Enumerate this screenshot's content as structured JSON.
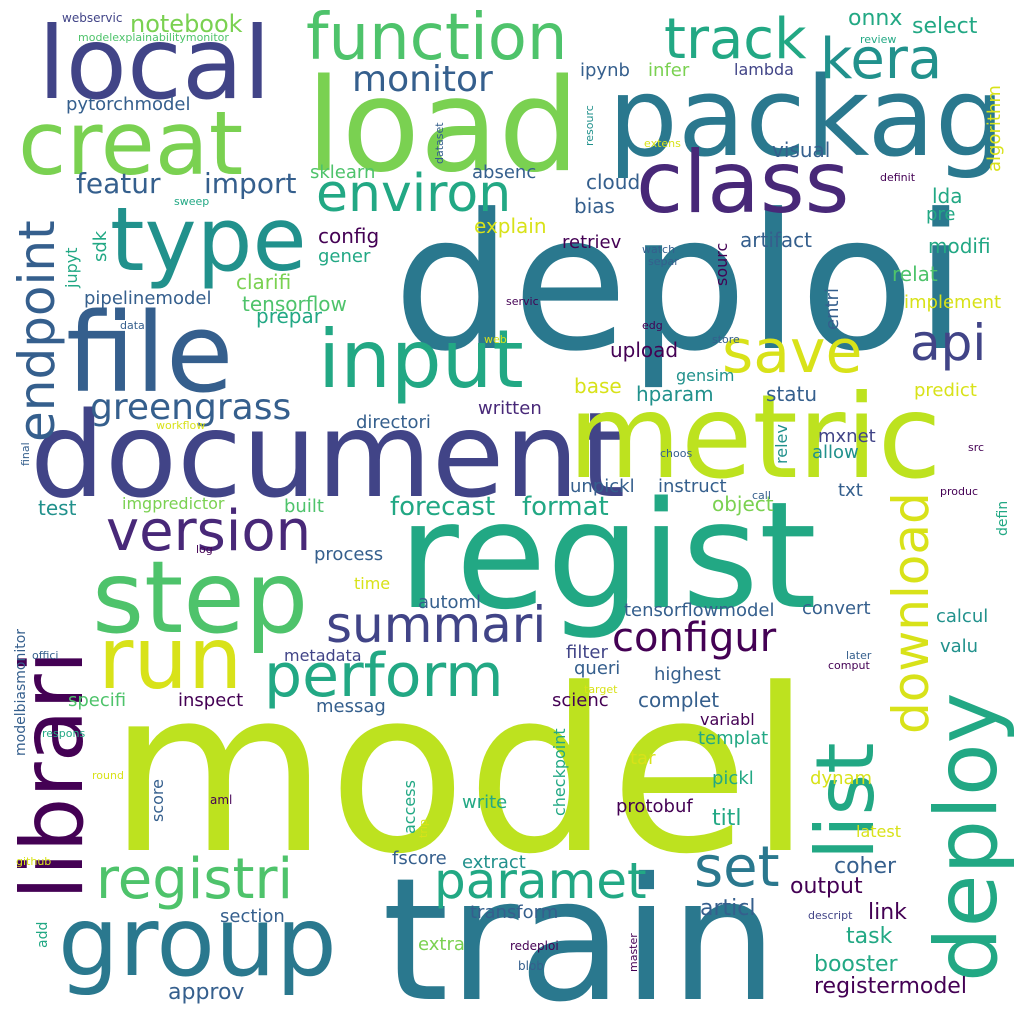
{
  "palette": {
    "lime": "#bde21f",
    "yellow": "#d8e219",
    "green": "#4ec36b",
    "light_green": "#7ad151",
    "teal": "#22a884",
    "cyan": "#21918c",
    "blue": "#2a788e",
    "slate": "#355f8d",
    "indigo": "#414487",
    "purple": "#482878",
    "dark": "#440154"
  },
  "words": [
    {
      "text": "model",
      "color": "lime"
    },
    {
      "text": "deploi",
      "color": "blue"
    },
    {
      "text": "train",
      "color": "blue"
    },
    {
      "text": "regist",
      "color": "teal"
    },
    {
      "text": "document",
      "color": "indigo"
    },
    {
      "text": "metric",
      "color": "lime"
    },
    {
      "text": "load",
      "color": "light_green"
    },
    {
      "text": "packag",
      "color": "blue"
    },
    {
      "text": "local",
      "color": "indigo"
    },
    {
      "text": "file",
      "color": "slate"
    },
    {
      "text": "group",
      "color": "blue"
    },
    {
      "text": "step",
      "color": "green"
    },
    {
      "text": "creat",
      "color": "light_green"
    },
    {
      "text": "class",
      "color": "purple"
    },
    {
      "text": "type",
      "color": "cyan"
    },
    {
      "text": "input",
      "color": "teal"
    },
    {
      "text": "run",
      "color": "yellow"
    },
    {
      "text": "deploy",
      "color": "teal"
    },
    {
      "text": "librari",
      "color": "dark"
    },
    {
      "text": "list",
      "color": "teal"
    },
    {
      "text": "function",
      "color": "green"
    },
    {
      "text": "perform",
      "color": "teal"
    },
    {
      "text": "registri",
      "color": "green"
    },
    {
      "text": "version",
      "color": "purple"
    },
    {
      "text": "summari",
      "color": "indigo"
    },
    {
      "text": "endpoint",
      "color": "slate"
    },
    {
      "text": "track",
      "color": "teal"
    },
    {
      "text": "environ",
      "color": "teal"
    },
    {
      "text": "paramet",
      "color": "teal"
    },
    {
      "text": "save",
      "color": "yellow"
    },
    {
      "text": "api",
      "color": "indigo"
    },
    {
      "text": "download",
      "color": "yellow"
    },
    {
      "text": "kera",
      "color": "cyan"
    },
    {
      "text": "set",
      "color": "blue"
    },
    {
      "text": "configur",
      "color": "dark"
    },
    {
      "text": "greengrass",
      "color": "slate"
    },
    {
      "text": "monitor",
      "color": "slate"
    },
    {
      "text": "featur",
      "color": "slate"
    },
    {
      "text": "import",
      "color": "slate"
    },
    {
      "text": "forecast",
      "color": "teal"
    },
    {
      "text": "format",
      "color": "teal"
    },
    {
      "text": "notebook",
      "color": "light_green"
    },
    {
      "text": "onnx",
      "color": "teal"
    },
    {
      "text": "select",
      "color": "teal"
    },
    {
      "text": "ipynb",
      "color": "slate"
    },
    {
      "text": "infer",
      "color": "light_green"
    },
    {
      "text": "lambda",
      "color": "indigo"
    },
    {
      "text": "pytorchmodel",
      "color": "slate"
    },
    {
      "text": "webservic",
      "color": "indigo"
    },
    {
      "text": "modelexplainabilitymonitor",
      "color": "green"
    },
    {
      "text": "visual",
      "color": "slate"
    },
    {
      "text": "sklearn",
      "color": "green"
    },
    {
      "text": "absenc",
      "color": "slate"
    },
    {
      "text": "cloud",
      "color": "slate"
    },
    {
      "text": "bias",
      "color": "slate"
    },
    {
      "text": "explain",
      "color": "yellow"
    },
    {
      "text": "config",
      "color": "dark"
    },
    {
      "text": "retriev",
      "color": "dark"
    },
    {
      "text": "artifact",
      "color": "slate"
    },
    {
      "text": "modifi",
      "color": "teal"
    },
    {
      "text": "lda",
      "color": "teal"
    },
    {
      "text": "pre",
      "color": "teal"
    },
    {
      "text": "gener",
      "color": "teal"
    },
    {
      "text": "clarifi",
      "color": "light_green"
    },
    {
      "text": "tensorflow",
      "color": "green"
    },
    {
      "text": "relat",
      "color": "green"
    },
    {
      "text": "pipelinemodel",
      "color": "slate"
    },
    {
      "text": "prepar",
      "color": "teal"
    },
    {
      "text": "implement",
      "color": "yellow"
    },
    {
      "text": "upload",
      "color": "dark"
    },
    {
      "text": "gensim",
      "color": "cyan"
    },
    {
      "text": "base",
      "color": "yellow"
    },
    {
      "text": "hparam",
      "color": "cyan"
    },
    {
      "text": "statu",
      "color": "slate"
    },
    {
      "text": "predict",
      "color": "yellow"
    },
    {
      "text": "written",
      "color": "purple"
    },
    {
      "text": "directori",
      "color": "slate"
    },
    {
      "text": "mxnet",
      "color": "indigo"
    },
    {
      "text": "allow",
      "color": "cyan"
    },
    {
      "text": "unpickl",
      "color": "slate"
    },
    {
      "text": "instruct",
      "color": "slate"
    },
    {
      "text": "txt",
      "color": "slate"
    },
    {
      "text": "object",
      "color": "light_green"
    },
    {
      "text": "imgpredictor",
      "color": "light_green"
    },
    {
      "text": "built",
      "color": "green"
    },
    {
      "text": "test",
      "color": "cyan"
    },
    {
      "text": "process",
      "color": "slate"
    },
    {
      "text": "time",
      "color": "yellow"
    },
    {
      "text": "automl",
      "color": "slate"
    },
    {
      "text": "tensorflowmodel",
      "color": "slate"
    },
    {
      "text": "convert",
      "color": "slate"
    },
    {
      "text": "calcul",
      "color": "cyan"
    },
    {
      "text": "valu",
      "color": "cyan"
    },
    {
      "text": "metadata",
      "color": "indigo"
    },
    {
      "text": "filter",
      "color": "indigo"
    },
    {
      "text": "queri",
      "color": "slate"
    },
    {
      "text": "highest",
      "color": "slate"
    },
    {
      "text": "complet",
      "color": "slate"
    },
    {
      "text": "specifi",
      "color": "green"
    },
    {
      "text": "inspect",
      "color": "dark"
    },
    {
      "text": "messag",
      "color": "slate"
    },
    {
      "text": "scienc",
      "color": "dark"
    },
    {
      "text": "variabl",
      "color": "dark"
    },
    {
      "text": "templat",
      "color": "teal"
    },
    {
      "text": "tar",
      "color": "yellow"
    },
    {
      "text": "pickl",
      "color": "teal"
    },
    {
      "text": "dynam",
      "color": "yellow"
    },
    {
      "text": "write",
      "color": "teal"
    },
    {
      "text": "protobuf",
      "color": "dark"
    },
    {
      "text": "titl",
      "color": "teal"
    },
    {
      "text": "latest",
      "color": "yellow"
    },
    {
      "text": "coher",
      "color": "slate"
    },
    {
      "text": "output",
      "color": "dark"
    },
    {
      "text": "link",
      "color": "dark"
    },
    {
      "text": "articl",
      "color": "slate"
    },
    {
      "text": "fscore",
      "color": "slate"
    },
    {
      "text": "extract",
      "color": "cyan"
    },
    {
      "text": "section",
      "color": "slate"
    },
    {
      "text": "transform",
      "color": "slate"
    },
    {
      "text": "task",
      "color": "teal"
    },
    {
      "text": "booster",
      "color": "teal"
    },
    {
      "text": "registermodel",
      "color": "dark"
    },
    {
      "text": "approv",
      "color": "slate"
    },
    {
      "text": "extra",
      "color": "light_green"
    },
    {
      "text": "add",
      "color": "teal"
    },
    {
      "text": "blob",
      "color": "slate"
    },
    {
      "text": "redeploi",
      "color": "dark"
    },
    {
      "text": "master",
      "color": "dark"
    },
    {
      "text": "descript",
      "color": "indigo"
    },
    {
      "text": "github",
      "color": "yellow"
    },
    {
      "text": "round",
      "color": "yellow"
    },
    {
      "text": "aml",
      "color": "dark"
    },
    {
      "text": "respons",
      "color": "teal"
    },
    {
      "text": "offici",
      "color": "slate"
    },
    {
      "text": "modelbiasmonitor",
      "color": "slate"
    },
    {
      "text": "score",
      "color": "slate"
    },
    {
      "text": "access",
      "color": "teal"
    },
    {
      "text": "checkpoint",
      "color": "teal"
    },
    {
      "text": "trip",
      "color": "yellow"
    },
    {
      "text": "target",
      "color": "yellow"
    },
    {
      "text": "later",
      "color": "slate"
    },
    {
      "text": "comput",
      "color": "dark"
    },
    {
      "text": "call",
      "color": "slate"
    },
    {
      "text": "produc",
      "color": "dark"
    },
    {
      "text": "defin",
      "color": "teal"
    },
    {
      "text": "src",
      "color": "dark"
    },
    {
      "text": "choos",
      "color": "slate"
    },
    {
      "text": "edg",
      "color": "dark"
    },
    {
      "text": "store",
      "color": "slate"
    },
    {
      "text": "web",
      "color": "yellow"
    },
    {
      "text": "data",
      "color": "slate"
    },
    {
      "text": "servic",
      "color": "dark"
    },
    {
      "text": "separ",
      "color": "slate"
    },
    {
      "text": "watch",
      "color": "slate"
    },
    {
      "text": "workflow",
      "color": "yellow"
    },
    {
      "text": "log",
      "color": "dark"
    },
    {
      "text": "final",
      "color": "slate"
    },
    {
      "text": "sweep",
      "color": "teal"
    },
    {
      "text": "dataset",
      "color": "slate"
    },
    {
      "text": "resourc",
      "color": "cyan"
    },
    {
      "text": "extens",
      "color": "yellow"
    },
    {
      "text": "definit",
      "color": "dark"
    },
    {
      "text": "review",
      "color": "teal"
    },
    {
      "text": "algorithm",
      "color": "yellow"
    },
    {
      "text": "relev",
      "color": "cyan"
    },
    {
      "text": "entri",
      "color": "slate"
    },
    {
      "text": "sourc",
      "color": "dark"
    },
    {
      "text": "sdk",
      "color": "teal"
    },
    {
      "text": "jupyt",
      "color": "teal"
    }
  ]
}
